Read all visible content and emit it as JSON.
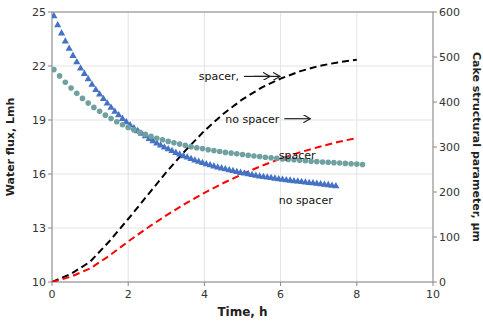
{
  "chart_data": {
    "type": "scatter",
    "xlabel": "Time, h",
    "ylabel": "Water flux, Lmh",
    "y2label": "Cake structural parameter, μm",
    "xlim": [
      0,
      10
    ],
    "ylim": [
      10,
      25
    ],
    "y2lim": [
      0,
      600
    ],
    "xticks": [
      0,
      2,
      4,
      6,
      8,
      10
    ],
    "yticks": [
      10,
      13,
      16,
      19,
      22,
      25
    ],
    "y2ticks": [
      0,
      100,
      200,
      300,
      400,
      500,
      600
    ],
    "grid": true,
    "series": [
      {
        "type": "line",
        "axis": "y2",
        "line_style": "dashed",
        "color": "#000000",
        "x": [
          0.0,
          0.5,
          1.0,
          1.5,
          2.0,
          2.5,
          3.0,
          3.5,
          4.0,
          4.5,
          5.0,
          5.5,
          6.0,
          6.5,
          7.0,
          7.5,
          8.0
        ],
        "values": [
          0,
          18,
          45,
          90,
          140,
          192,
          244,
          292,
          336,
          374,
          406,
          432,
          452,
          468,
          480,
          488,
          494
        ]
      },
      {
        "type": "line",
        "axis": "y2",
        "line_style": "dashed",
        "color": "#FF0000",
        "x": [
          0.0,
          0.5,
          1.0,
          1.5,
          2.0,
          2.5,
          3.0,
          3.5,
          4.0,
          4.5,
          5.0,
          5.5,
          6.0,
          6.5,
          7.0,
          7.5,
          8.0
        ],
        "values": [
          0,
          12,
          30,
          58,
          90,
          120,
          148,
          174,
          198,
          220,
          240,
          258,
          274,
          288,
          300,
          311,
          320
        ]
      },
      {
        "type": "scatter",
        "marker": "triangle",
        "color": "#4472C4",
        "x": [
          0.05,
          0.15,
          0.25,
          0.35,
          0.45,
          0.55,
          0.65,
          0.75,
          0.85,
          0.95,
          1.05,
          1.15,
          1.25,
          1.35,
          1.45,
          1.55,
          1.65,
          1.75,
          1.85,
          1.95,
          2.05,
          2.15,
          2.25,
          2.35,
          2.45,
          2.55,
          2.65,
          2.75,
          2.85,
          2.95,
          3.05,
          3.15,
          3.25,
          3.35,
          3.45,
          3.55,
          3.65,
          3.75,
          3.85,
          3.95,
          4.05,
          4.15,
          4.25,
          4.35,
          4.45,
          4.55,
          4.65,
          4.75,
          4.85,
          4.95,
          5.05,
          5.15,
          5.25,
          5.35,
          5.45,
          5.55,
          5.65,
          5.75,
          5.85,
          5.95,
          6.05,
          6.15,
          6.25,
          6.35,
          6.45,
          6.55,
          6.65,
          6.75,
          6.85,
          6.95,
          7.05,
          7.15,
          7.25,
          7.35,
          7.45
        ],
        "values": [
          24.8,
          24.3,
          23.85,
          23.4,
          23.0,
          22.6,
          22.25,
          21.9,
          21.6,
          21.3,
          21.0,
          20.7,
          20.45,
          20.2,
          19.95,
          19.72,
          19.5,
          19.3,
          19.1,
          18.92,
          18.75,
          18.58,
          18.42,
          18.27,
          18.13,
          17.99,
          17.86,
          17.74,
          17.62,
          17.51,
          17.41,
          17.31,
          17.21,
          17.12,
          17.03,
          16.95,
          16.87,
          16.79,
          16.72,
          16.65,
          16.58,
          16.52,
          16.46,
          16.4,
          16.35,
          16.3,
          16.25,
          16.2,
          16.15,
          16.1,
          16.06,
          16.02,
          15.98,
          15.94,
          15.9,
          15.87,
          15.84,
          15.81,
          15.78,
          15.75,
          15.72,
          15.69,
          15.67,
          15.64,
          15.62,
          15.59,
          15.57,
          15.54,
          15.52,
          15.5,
          15.47,
          15.44,
          15.42,
          15.39,
          15.36
        ]
      },
      {
        "type": "scatter",
        "marker": "circle",
        "color": "#70A0A0",
        "x": [
          0.05,
          0.2,
          0.35,
          0.5,
          0.65,
          0.8,
          0.95,
          1.1,
          1.25,
          1.4,
          1.55,
          1.7,
          1.85,
          2.0,
          2.15,
          2.3,
          2.45,
          2.6,
          2.75,
          2.9,
          3.05,
          3.2,
          3.35,
          3.5,
          3.65,
          3.8,
          3.95,
          4.1,
          4.25,
          4.4,
          4.55,
          4.7,
          4.85,
          5.0,
          5.15,
          5.3,
          5.45,
          5.6,
          5.75,
          5.9,
          6.05,
          6.2,
          6.35,
          6.5,
          6.65,
          6.8,
          6.95,
          7.1,
          7.25,
          7.4,
          7.55,
          7.7,
          7.85,
          8.0,
          8.15
        ],
        "values": [
          21.8,
          21.45,
          21.1,
          20.78,
          20.48,
          20.2,
          19.94,
          19.7,
          19.48,
          19.27,
          19.08,
          18.9,
          18.74,
          18.59,
          18.45,
          18.32,
          18.2,
          18.09,
          17.99,
          17.9,
          17.81,
          17.73,
          17.66,
          17.59,
          17.52,
          17.46,
          17.41,
          17.35,
          17.3,
          17.25,
          17.2,
          17.16,
          17.12,
          17.08,
          17.04,
          17.0,
          16.97,
          16.93,
          16.9,
          16.87,
          16.84,
          16.81,
          16.79,
          16.76,
          16.74,
          16.71,
          16.69,
          16.67,
          16.65,
          16.63,
          16.61,
          16.59,
          16.57,
          16.55,
          16.53
        ]
      }
    ],
    "annotations": [
      {
        "text": "spacer,",
        "x": 3.85,
        "y": 21.2
      },
      {
        "text": "no spacer",
        "x": 4.55,
        "y": 18.85
      },
      {
        "text": "spacer",
        "x": 5.95,
        "y": 16.85
      },
      {
        "text": "no spacer",
        "x": 5.95,
        "y": 14.35
      }
    ]
  }
}
